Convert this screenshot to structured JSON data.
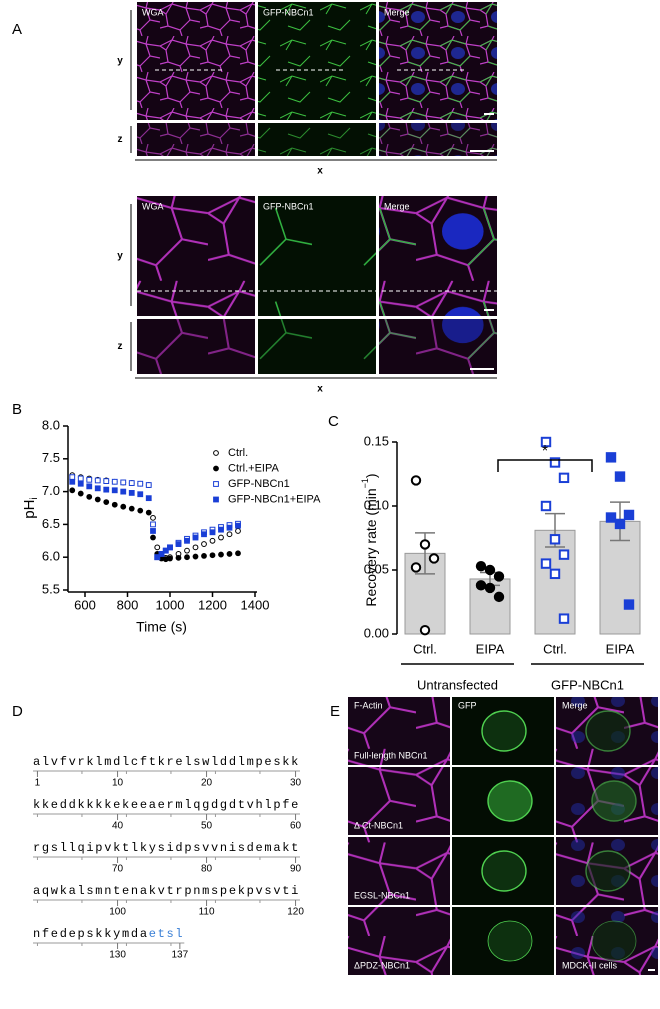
{
  "panel_a": {
    "label": "A",
    "sets": [
      {
        "channels": [
          "WGA",
          "GFP-NBCn1",
          "Merge"
        ],
        "y_axis": "y",
        "z_axis": "z",
        "x_axis": "x"
      },
      {
        "channels": [
          "WGA",
          "GFP-NBCn1",
          "Merge"
        ],
        "y_axis": "y",
        "z_axis": "z",
        "x_axis": "x"
      }
    ]
  },
  "chart_data": [
    {
      "panel": "B",
      "type": "scatter",
      "xlabel": "Time (s)",
      "ylabel": "pH",
      "ylabel_sub": "i",
      "x": [
        540,
        580,
        620,
        660,
        700,
        740,
        780,
        820,
        860,
        900,
        920,
        940,
        960,
        980,
        1000,
        1040,
        1080,
        1120,
        1160,
        1200,
        1240,
        1280,
        1320
      ],
      "xlim": [
        520,
        1400
      ],
      "xticks": [
        600,
        800,
        1000,
        1200,
        1400
      ],
      "ylim": [
        5.5,
        8.0
      ],
      "yticks": [
        5.5,
        {
          "value": 6,
          "label": "6.0"
        },
        6.5,
        {
          "value": 7,
          "label": "7.0"
        },
        7.5,
        {
          "value": 8,
          "label": "8.0"
        }
      ],
      "legend": "upper right",
      "series": [
        {
          "name": "Ctrl.",
          "color": "#000000",
          "marker": "open-circle",
          "values": [
            7.25,
            7.22,
            7.2,
            7.18,
            7.17,
            7.15,
            7.14,
            7.13,
            7.12,
            7.1,
            6.6,
            6.15,
            6.02,
            5.99,
            6.0,
            6.05,
            6.1,
            6.15,
            6.2,
            6.25,
            6.3,
            6.35,
            6.4
          ]
        },
        {
          "name": "Ctrl.+EIPA",
          "color": "#000000",
          "marker": "filled-circle",
          "values": [
            7.02,
            6.97,
            6.92,
            6.88,
            6.84,
            6.8,
            6.77,
            6.74,
            6.71,
            6.68,
            6.3,
            6.05,
            5.98,
            5.97,
            5.98,
            5.99,
            6.0,
            6.01,
            6.02,
            6.03,
            6.04,
            6.05,
            6.06
          ]
        },
        {
          "name": "GFP-NBCn1",
          "color": "#1a3fd6",
          "marker": "open-square",
          "values": [
            7.22,
            7.2,
            7.18,
            7.17,
            7.16,
            7.15,
            7.14,
            7.13,
            7.12,
            7.1,
            6.5,
            6.0,
            6.05,
            6.1,
            6.15,
            6.22,
            6.28,
            6.33,
            6.38,
            6.42,
            6.46,
            6.49,
            6.51
          ]
        },
        {
          "name": "GFP-NBCn1+EIPA",
          "color": "#1a3fd6",
          "marker": "filled-square",
          "values": [
            7.15,
            7.12,
            7.08,
            7.05,
            7.03,
            7.02,
            7.0,
            6.98,
            6.96,
            6.9,
            6.4,
            6.0,
            6.05,
            6.1,
            6.15,
            6.2,
            6.25,
            6.3,
            6.35,
            6.38,
            6.42,
            6.45,
            6.48
          ]
        }
      ]
    },
    {
      "panel": "C",
      "type": "bar",
      "ylabel": "Recovery rate (min",
      "ylabel_sup": "−1",
      "ylabel_end": ")",
      "categories": [
        "Ctrl.",
        "EIPA",
        "Ctrl.",
        "EIPA"
      ],
      "groups": [
        "Untransfected",
        "GFP-NBCn1"
      ],
      "values": [
        0.063,
        0.043,
        0.081,
        0.088
      ],
      "errors": [
        0.016,
        0.005,
        0.013,
        0.015
      ],
      "color": "#d3d3d3",
      "points": [
        [
          0.12,
          0.07,
          0.059,
          0.052,
          0.003
        ],
        [
          0.053,
          0.05,
          0.045,
          0.038,
          0.036,
          0.029
        ],
        [
          0.15,
          0.134,
          0.122,
          0.1,
          0.074,
          0.062,
          0.055,
          0.047,
          0.012
        ],
        [
          0.138,
          0.123,
          0.093,
          0.091,
          0.086,
          0.023
        ]
      ],
      "point_markers": [
        "open-circle",
        "filled-circle",
        "open-square",
        "filled-square"
      ],
      "point_colors": [
        "#000000",
        "#000000",
        "#1a3fd6",
        "#1a3fd6"
      ],
      "significance": "*",
      "ylim": [
        0,
        0.15
      ],
      "yticks": [
        {
          "value": 0,
          "label": "0.00"
        },
        {
          "value": 0.05,
          "label": "0.05"
        },
        {
          "value": 0.1,
          "label": "0.10"
        },
        {
          "value": 0.15,
          "label": "0.15"
        }
      ]
    }
  ],
  "panel_d": {
    "label": "D",
    "lines": [
      {
        "sequence": "alvfvrklmdlcftkrelswlddlmpeskk",
        "numbers": [
          1,
          10,
          20,
          30
        ]
      },
      {
        "sequence": "kkeddkkkkekeeaermlqgdgdtvhlpfe",
        "numbers": [
          40,
          50,
          60
        ]
      },
      {
        "sequence": "rgsllqipvktlkysidpsvvnisdemakt",
        "numbers": [
          70,
          80,
          90
        ]
      },
      {
        "sequence": "aqwkalsmntenakvtrpnmspekpvsvti",
        "numbers": [
          100,
          110,
          120
        ]
      },
      {
        "sequence": "nfedepskkymda",
        "highlight": "etsl",
        "numbers": [
          130,
          137
        ]
      }
    ]
  },
  "panel_e": {
    "label": "E",
    "columns": [
      "F-Actin",
      "GFP",
      "Merge"
    ],
    "rows": [
      "Full-length NBCn1",
      "Δ Ct-NBCn1",
      "EGSL-NBCn1",
      "ΔPDZ-NBCn1"
    ],
    "cell_line": "MDCK-II cells"
  }
}
